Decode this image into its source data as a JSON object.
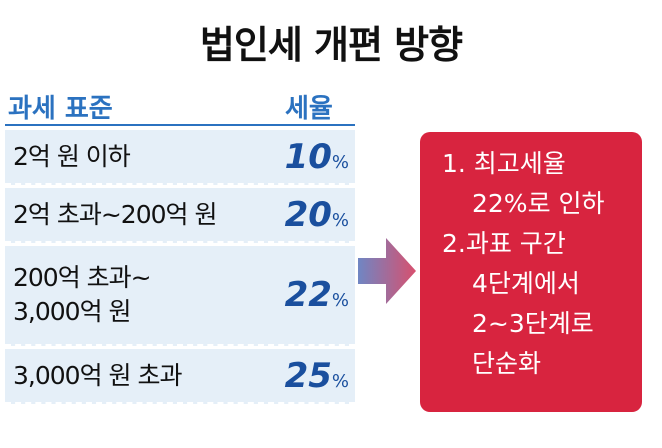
{
  "title": "법인세 개편 방향",
  "table": {
    "header": [
      "과세 표준",
      "세율"
    ],
    "rows": [
      {
        "bracket": [
          "2억 원 이하"
        ],
        "rate": "10",
        "unit": "%"
      },
      {
        "bracket": [
          "2억 초과~200억 원"
        ],
        "rate": "20",
        "unit": "%"
      },
      {
        "bracket": [
          "200억 초과~",
          "3,000억 원"
        ],
        "rate": "22",
        "unit": "%"
      },
      {
        "bracket": [
          "3,000억 원 초과"
        ],
        "rate": "25",
        "unit": "%"
      }
    ]
  },
  "box": {
    "lines": [
      "1. 최고세율",
      "22%로 인하",
      "2.과표 구간",
      "4단계에서",
      "2~3단계로",
      "단순화"
    ]
  }
}
